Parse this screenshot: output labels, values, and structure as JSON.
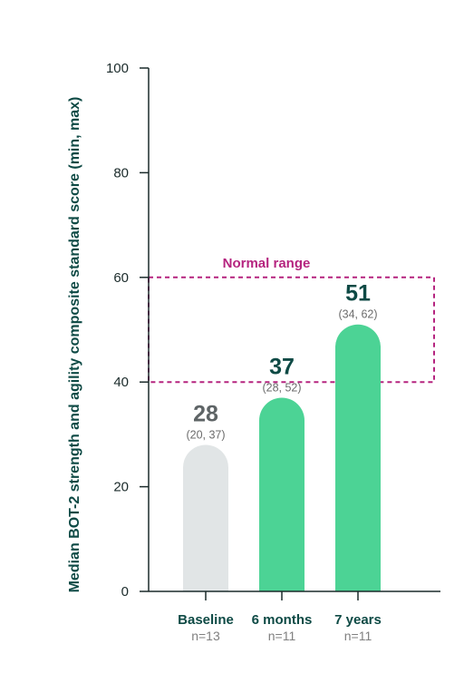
{
  "chart_data": {
    "type": "bar",
    "ylabel": "Median BOT-2 strength and agility composite standard score (min, max)",
    "ylim": [
      0,
      100
    ],
    "yticks": [
      0,
      20,
      40,
      60,
      80,
      100
    ],
    "categories": [
      "Baseline",
      "6 months",
      "7 years"
    ],
    "sample_sizes": [
      "n=13",
      "n=11",
      "n=11"
    ],
    "values": [
      28,
      37,
      51
    ],
    "value_labels": [
      "28",
      "37",
      "51"
    ],
    "ranges": [
      "(20, 37)",
      "(28, 52)",
      "(34, 62)"
    ],
    "bar_colors": [
      "#e1e5e6",
      "#4cd395",
      "#4cd395"
    ],
    "value_label_colors": [
      "#5e6466",
      "#0e4a45",
      "#0e4a45"
    ],
    "normal_range": {
      "label": "Normal range",
      "min": 40,
      "max": 60,
      "color": "#b5247f"
    }
  }
}
